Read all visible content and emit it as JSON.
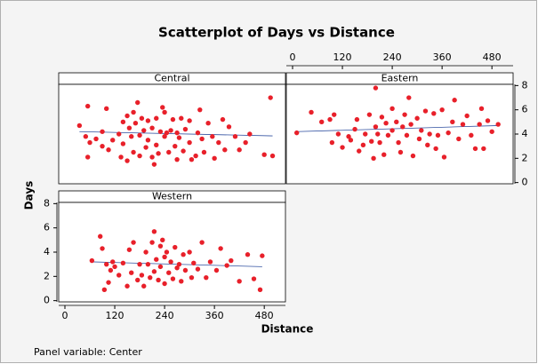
{
  "chart_data": {
    "type": "scatter",
    "title": "Scatterplot of Days vs Distance",
    "xlabel": "Distance",
    "ylabel": "Days",
    "footnote": "Panel variable: Center",
    "xlim": [
      -15,
      531
    ],
    "xticks": [
      0,
      120,
      240,
      360,
      480
    ],
    "ylim": [
      -0.1,
      8.1
    ],
    "yticks": [
      0,
      2,
      4,
      6,
      8
    ],
    "color": "#e8202a",
    "fit_color": "#3050a0",
    "panels": [
      {
        "name": "Central",
        "x": [
          35,
          50,
          55,
          55,
          60,
          75,
          90,
          90,
          100,
          105,
          115,
          130,
          135,
          140,
          140,
          150,
          150,
          155,
          160,
          165,
          165,
          170,
          175,
          180,
          180,
          185,
          190,
          195,
          200,
          200,
          210,
          210,
          215,
          220,
          220,
          225,
          230,
          235,
          240,
          240,
          245,
          250,
          255,
          260,
          265,
          270,
          270,
          275,
          280,
          285,
          290,
          300,
          300,
          305,
          315,
          320,
          325,
          330,
          335,
          345,
          355,
          360,
          370,
          380,
          385,
          395,
          410,
          420,
          435,
          445,
          480,
          495,
          500
        ],
        "y": [
          4.7,
          3.8,
          2.1,
          6.3,
          3.3,
          3.6,
          4.2,
          3.0,
          6.1,
          2.7,
          3.5,
          4.0,
          2.1,
          5.0,
          3.2,
          5.5,
          1.8,
          4.5,
          3.8,
          5.8,
          2.5,
          4.9,
          6.6,
          3.9,
          2.2,
          5.3,
          4.3,
          2.9,
          5.1,
          3.5,
          2.1,
          4.5,
          1.5,
          5.3,
          3.1,
          2.4,
          4.2,
          6.2,
          5.8,
          3.8,
          4.1,
          2.5,
          4.3,
          5.2,
          3.0,
          4.1,
          1.9,
          3.7,
          5.3,
          2.6,
          4.4,
          3.3,
          5.1,
          1.9,
          2.2,
          4.1,
          6.0,
          3.6,
          2.5,
          4.9,
          3.8,
          2.0,
          3.3,
          5.2,
          2.7,
          4.6,
          3.8,
          2.7,
          3.3,
          4.0,
          2.3,
          7.0,
          2.2
        ],
        "fit": {
          "x": [
            35,
            500
          ],
          "y": [
            4.2,
            3.85
          ]
        }
      },
      {
        "name": "Eastern",
        "x": [
          10,
          45,
          70,
          90,
          95,
          100,
          110,
          120,
          135,
          140,
          150,
          155,
          160,
          170,
          175,
          185,
          190,
          195,
          200,
          200,
          205,
          210,
          215,
          220,
          225,
          230,
          240,
          240,
          250,
          255,
          260,
          265,
          270,
          275,
          280,
          285,
          290,
          300,
          305,
          310,
          320,
          325,
          330,
          340,
          345,
          350,
          360,
          365,
          375,
          385,
          390,
          400,
          410,
          420,
          430,
          440,
          450,
          455,
          460,
          470,
          480,
          495
        ],
        "y": [
          4.1,
          5.8,
          5.0,
          5.2,
          3.3,
          5.6,
          4.0,
          2.9,
          3.8,
          3.5,
          4.4,
          5.2,
          2.6,
          3.1,
          4.0,
          5.6,
          3.4,
          2.0,
          4.6,
          7.8,
          4.0,
          3.3,
          5.4,
          2.3,
          4.9,
          3.9,
          6.1,
          4.3,
          5.0,
          3.3,
          2.5,
          4.6,
          5.6,
          3.9,
          7.0,
          4.8,
          2.2,
          5.3,
          3.6,
          4.3,
          5.9,
          3.1,
          4.0,
          5.7,
          2.8,
          3.9,
          6.0,
          2.1,
          4.1,
          5.0,
          6.8,
          3.6,
          4.8,
          5.5,
          3.9,
          2.8,
          4.8,
          6.1,
          2.8,
          5.1,
          4.2,
          4.8
        ],
        "fit": {
          "x": [
            10,
            495
          ],
          "y": [
            4.2,
            4.7
          ]
        }
      },
      {
        "name": "Western",
        "x": [
          65,
          85,
          90,
          95,
          100,
          105,
          110,
          115,
          120,
          130,
          140,
          150,
          155,
          160,
          165,
          175,
          180,
          185,
          190,
          195,
          200,
          205,
          210,
          215,
          215,
          220,
          225,
          230,
          230,
          235,
          240,
          240,
          245,
          250,
          255,
          260,
          265,
          270,
          275,
          280,
          285,
          290,
          300,
          305,
          310,
          320,
          330,
          340,
          350,
          365,
          375,
          390,
          400,
          420,
          440,
          455,
          470,
          475
        ],
        "y": [
          3.3,
          5.3,
          4.3,
          0.9,
          3.0,
          1.5,
          2.5,
          3.2,
          2.8,
          2.1,
          3.1,
          1.2,
          4.2,
          2.3,
          4.8,
          1.7,
          3.0,
          2.1,
          1.2,
          4.0,
          3.0,
          1.9,
          4.8,
          5.7,
          2.4,
          3.4,
          1.7,
          4.5,
          2.8,
          5.0,
          3.6,
          1.4,
          4.0,
          2.3,
          3.2,
          1.8,
          4.4,
          2.7,
          3.0,
          1.6,
          3.8,
          2.5,
          4.0,
          1.9,
          3.1,
          2.6,
          4.8,
          1.9,
          3.2,
          2.5,
          4.3,
          2.9,
          3.3,
          1.6,
          3.8,
          1.8,
          0.9,
          3.7
        ],
        "fit": {
          "x": [
            65,
            475
          ],
          "y": [
            3.2,
            2.8
          ]
        }
      }
    ]
  }
}
